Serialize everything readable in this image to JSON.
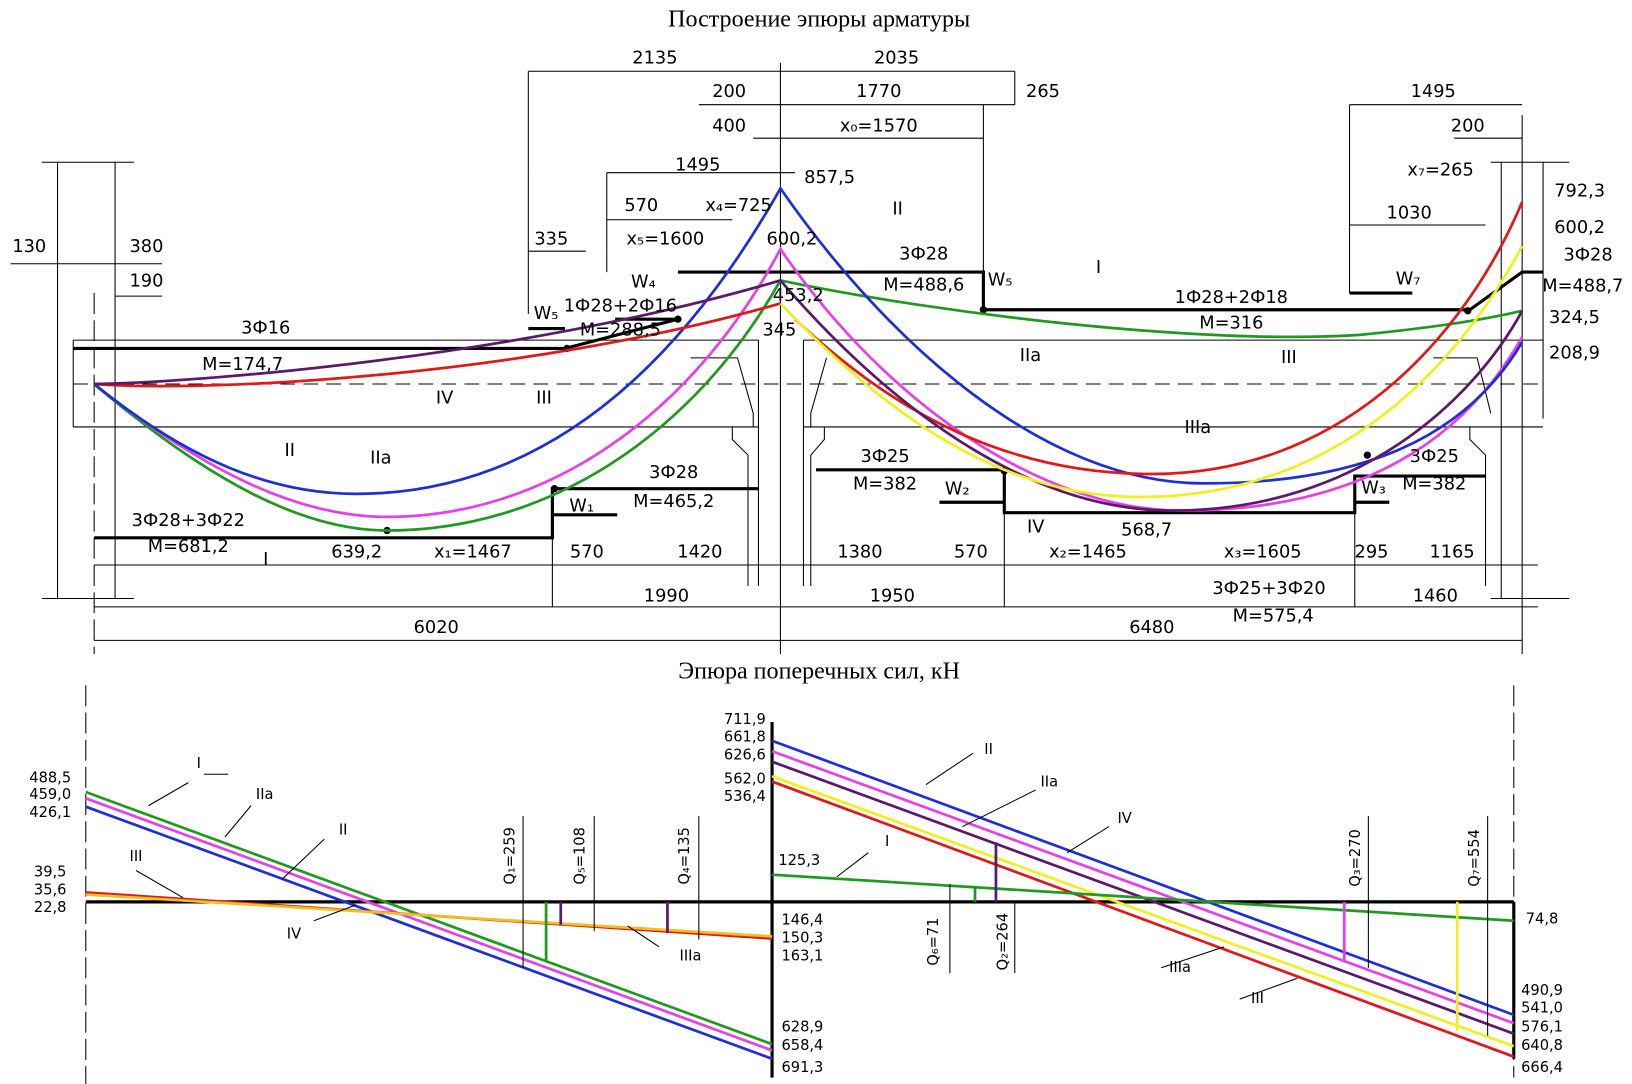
{
  "titles": {
    "moment": "Построение эпюры арматуры",
    "shear": "Эпюра поперечных сил, кН"
  },
  "upper_labels": [
    "2135",
    "2035",
    "200",
    "1770",
    "265",
    "400",
    "x₀=1570",
    "1495",
    "857,5",
    "570",
    "x₄=725",
    "x₅=1600",
    "600,2",
    "II",
    "3Ф28",
    "M=488,6",
    "W₅",
    "I",
    "335",
    "W₄",
    "1Ф28+2Ф16",
    "M=288,5",
    "W₅",
    "453,2",
    "345",
    "3Ф16",
    "M=174,7",
    "IV",
    "III",
    "130",
    "380",
    "190",
    "1Ф28+2Ф18",
    "M=316",
    "IIa",
    "III",
    "IIIa",
    "1495",
    "200",
    "x₇=265",
    "792,3",
    "600,2",
    "3Ф28",
    "M=488,7",
    "324,5",
    "208,9",
    "1030",
    "W₇",
    "II",
    "IIa",
    "3Ф28",
    "M=465,2",
    "W₁",
    "3Ф28+3Ф22",
    "M=681,2",
    "I",
    "639,2",
    "x₁=1467",
    "570",
    "1420",
    "1990",
    "6020",
    "3Ф25",
    "M=382",
    "W₂",
    "IV",
    "568,7",
    "x₂=1465",
    "1380",
    "570",
    "x₃=1605",
    "295",
    "1165",
    "1950",
    "3Ф25+3Ф20",
    "M=575,4",
    "1460",
    "6480",
    "3Ф25",
    "M=382",
    "W₃"
  ],
  "lower_labels": [
    "488,5",
    "459,0",
    "426,1",
    "39,5",
    "35,6",
    "22,8",
    "I",
    "IIa",
    "II",
    "III",
    "IV",
    "Q₁=259",
    "Q₅=108",
    "Q₄=135",
    "IIIa",
    "711,9",
    "661,8",
    "626,6",
    "562,0",
    "536,4",
    "125,3",
    "146,4",
    "150,3",
    "163,1",
    "628,9",
    "658,4",
    "691,3",
    "II",
    "IIa",
    "IV",
    "I",
    "Q₆=71",
    "Q₂=264",
    "IIIa",
    "III",
    "Q₃=270",
    "Q₇=554",
    "74,8",
    "490,9",
    "541,0",
    "576,1",
    "640,8",
    "666,4"
  ]
}
